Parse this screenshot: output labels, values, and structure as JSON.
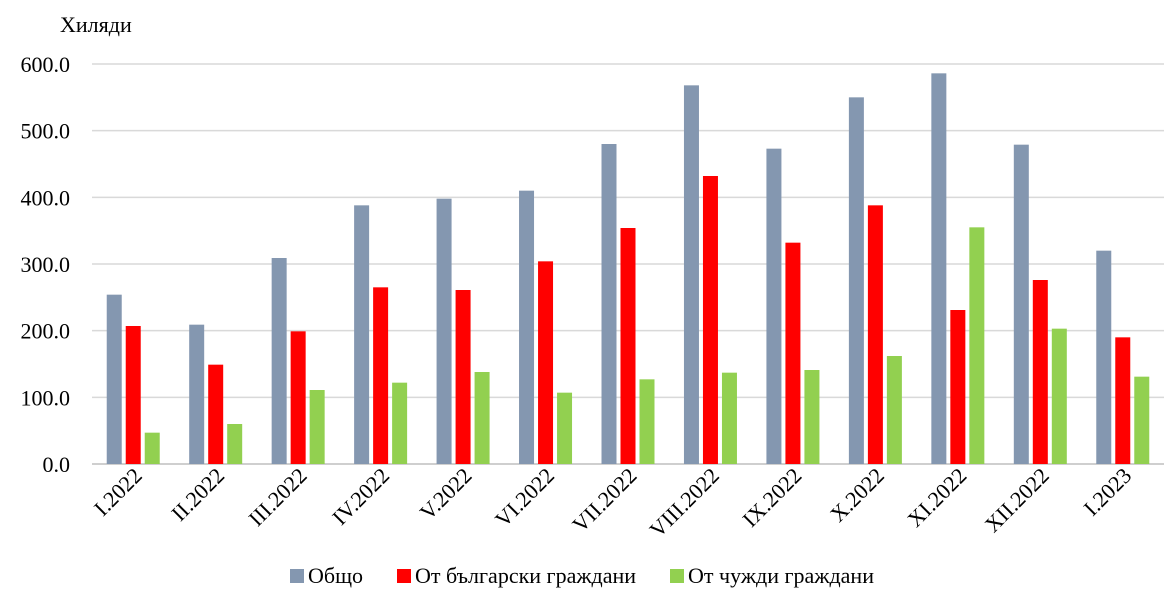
{
  "chart_data": {
    "type": "bar",
    "unit_label": "Хиляди",
    "categories": [
      "I.2022",
      "II.2022",
      "III.2022",
      "IV.2022",
      "V.2022",
      "VI.2022",
      "VII.2022",
      "VIII.2022",
      "IX.2022",
      "X.2022",
      "XI.2022",
      "XII.2022",
      "I.2023"
    ],
    "series": [
      {
        "name": "Общо",
        "color": "#8497b0",
        "values": [
          254,
          209,
          309,
          388,
          398,
          410,
          480,
          568,
          473,
          550,
          586,
          479,
          320
        ]
      },
      {
        "name": "От български граждани",
        "color": "#ff0000",
        "values": [
          207,
          149,
          199,
          265,
          261,
          304,
          354,
          432,
          332,
          388,
          231,
          276,
          190
        ]
      },
      {
        "name": "От чужди граждани",
        "color": "#92d050",
        "values": [
          47,
          60,
          111,
          122,
          138,
          107,
          127,
          137,
          141,
          162,
          355,
          203,
          131
        ]
      }
    ],
    "yticks": [
      "0.0",
      "100.0",
      "200.0",
      "300.0",
      "400.0",
      "500.0",
      "600.0"
    ],
    "ylim": [
      0,
      600
    ],
    "grid": true,
    "legend_position": "bottom"
  }
}
